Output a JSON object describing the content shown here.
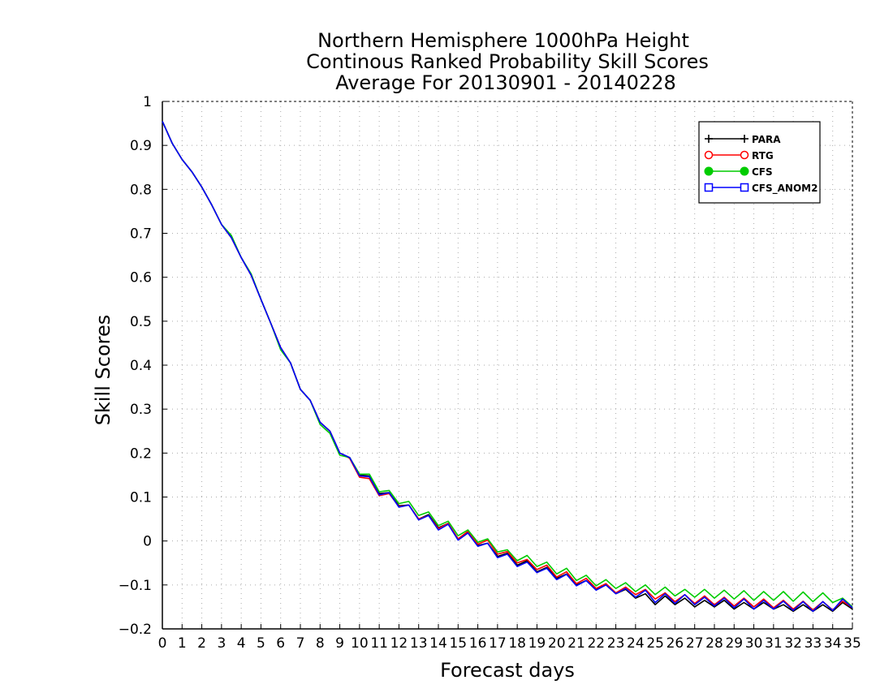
{
  "chart_data": {
    "type": "line",
    "title_lines": [
      "Northern Hemisphere 1000hPa Height",
      "Continous Ranked Probability Skill Scores",
      "Average For 20130901 - 20140228"
    ],
    "xlabel": "Forecast days",
    "ylabel": "Skill Scores",
    "xlim": [
      0,
      35
    ],
    "ylim": [
      -0.2,
      1
    ],
    "x_ticks": [
      0,
      1,
      2,
      3,
      4,
      5,
      6,
      7,
      8,
      9,
      10,
      11,
      12,
      13,
      14,
      15,
      16,
      17,
      18,
      19,
      20,
      21,
      22,
      23,
      24,
      25,
      26,
      27,
      28,
      29,
      30,
      31,
      32,
      33,
      34,
      35
    ],
    "x_tick_labels": [
      "0",
      "1",
      "2",
      "3",
      "4",
      "5",
      "6",
      "7",
      "8",
      "9",
      "10",
      "11",
      "12",
      "13",
      "14",
      "15",
      "16",
      "17",
      "18",
      "19",
      "20",
      "21",
      "22",
      "23",
      "24",
      "25",
      "26",
      "27",
      "28",
      "29",
      "30",
      "31",
      "32",
      "33",
      "34",
      "35"
    ],
    "y_ticks": [
      -0.2,
      -0.1,
      0,
      0.1,
      0.2,
      0.3,
      0.4,
      0.5,
      0.6,
      0.7,
      0.8,
      0.9,
      1
    ],
    "y_tick_labels": [
      "−0.2",
      "−0.1",
      "0",
      "0.1",
      "0.2",
      "0.3",
      "0.4",
      "0.5",
      "0.6",
      "0.7",
      "0.8",
      "0.9",
      "1"
    ],
    "grid": true,
    "legend_position": "top-right",
    "series": [
      {
        "name": "PARA",
        "color": "#000000",
        "marker": "plus",
        "x": [
          0,
          0.5,
          1,
          1.5,
          2,
          2.5,
          3,
          3.5,
          4,
          4.5,
          5,
          5.5,
          6,
          6.5,
          7,
          7.5,
          8,
          8.5,
          9,
          9.5,
          10,
          10.5,
          11,
          11.5,
          12,
          12.5,
          13,
          13.5,
          14,
          14.5,
          15,
          15.5,
          16,
          16.5,
          17,
          17.5,
          18,
          18.5,
          19,
          19.5,
          20,
          20.5,
          21,
          21.5,
          22,
          22.5,
          23,
          23.5,
          24,
          24.5,
          25,
          25.5,
          26,
          26.5,
          27,
          27.5,
          28,
          28.5,
          29,
          29.5,
          30,
          30.5,
          31,
          31.5,
          32,
          32.5,
          33,
          33.5,
          34,
          34.5,
          35
        ],
        "y": [
          0.955,
          0.905,
          0.868,
          0.84,
          0.805,
          0.765,
          0.72,
          0.69,
          0.645,
          0.605,
          0.55,
          0.495,
          0.44,
          0.405,
          0.345,
          0.32,
          0.27,
          0.25,
          0.2,
          0.19,
          0.15,
          0.148,
          0.108,
          0.11,
          0.08,
          0.082,
          0.05,
          0.06,
          0.03,
          0.04,
          0.005,
          0.02,
          -0.01,
          -0.005,
          -0.035,
          -0.028,
          -0.055,
          -0.045,
          -0.07,
          -0.06,
          -0.085,
          -0.075,
          -0.1,
          -0.09,
          -0.11,
          -0.1,
          -0.12,
          -0.11,
          -0.13,
          -0.12,
          -0.145,
          -0.125,
          -0.145,
          -0.13,
          -0.15,
          -0.135,
          -0.15,
          -0.135,
          -0.155,
          -0.14,
          -0.155,
          -0.14,
          -0.155,
          -0.145,
          -0.16,
          -0.145,
          -0.16,
          -0.145,
          -0.16,
          -0.14,
          -0.155
        ]
      },
      {
        "name": "RTG",
        "color": "#ff0000",
        "marker": "open-circle",
        "x": [
          0,
          0.5,
          1,
          1.5,
          2,
          2.5,
          3,
          3.5,
          4,
          4.5,
          5,
          5.5,
          6,
          6.5,
          7,
          7.5,
          8,
          8.5,
          9,
          9.5,
          10,
          10.5,
          11,
          11.5,
          12,
          12.5,
          13,
          13.5,
          14,
          14.5,
          15,
          15.5,
          16,
          16.5,
          17,
          17.5,
          18,
          18.5,
          19,
          19.5,
          20,
          20.5,
          21,
          21.5,
          22,
          22.5,
          23,
          23.5,
          24,
          24.5,
          25,
          25.5,
          26,
          26.5,
          27,
          27.5,
          28,
          28.5,
          29,
          29.5,
          30,
          30.5,
          31,
          31.5,
          32,
          32.5,
          33,
          33.5,
          34,
          34.5,
          35
        ],
        "y": [
          0.955,
          0.905,
          0.868,
          0.84,
          0.805,
          0.765,
          0.72,
          0.69,
          0.645,
          0.605,
          0.55,
          0.495,
          0.44,
          0.405,
          0.345,
          0.32,
          0.27,
          0.25,
          0.2,
          0.188,
          0.145,
          0.142,
          0.103,
          0.108,
          0.078,
          0.082,
          0.05,
          0.058,
          0.028,
          0.04,
          0.005,
          0.022,
          -0.007,
          0.002,
          -0.03,
          -0.024,
          -0.05,
          -0.042,
          -0.065,
          -0.055,
          -0.082,
          -0.07,
          -0.097,
          -0.085,
          -0.108,
          -0.097,
          -0.118,
          -0.105,
          -0.122,
          -0.11,
          -0.132,
          -0.118,
          -0.138,
          -0.122,
          -0.142,
          -0.125,
          -0.145,
          -0.128,
          -0.148,
          -0.13,
          -0.15,
          -0.132,
          -0.152,
          -0.135,
          -0.155,
          -0.137,
          -0.157,
          -0.138,
          -0.157,
          -0.137,
          -0.152
        ]
      },
      {
        "name": "CFS",
        "color": "#00cc00",
        "marker": "filled-circle",
        "x": [
          0,
          0.5,
          1,
          1.5,
          2,
          2.5,
          3,
          3.5,
          4,
          4.5,
          5,
          5.5,
          6,
          6.5,
          7,
          7.5,
          8,
          8.5,
          9,
          9.5,
          10,
          10.5,
          11,
          11.5,
          12,
          12.5,
          13,
          13.5,
          14,
          14.5,
          15,
          15.5,
          16,
          16.5,
          17,
          17.5,
          18,
          18.5,
          19,
          19.5,
          20,
          20.5,
          21,
          21.5,
          22,
          22.5,
          23,
          23.5,
          24,
          24.5,
          25,
          25.5,
          26,
          26.5,
          27,
          27.5,
          28,
          28.5,
          29,
          29.5,
          30,
          30.5,
          31,
          31.5,
          32,
          32.5,
          33,
          33.5,
          34,
          34.5,
          35
        ],
        "y": [
          0.955,
          0.905,
          0.868,
          0.84,
          0.805,
          0.765,
          0.72,
          0.695,
          0.645,
          0.608,
          0.55,
          0.495,
          0.435,
          0.405,
          0.345,
          0.32,
          0.265,
          0.245,
          0.195,
          0.19,
          0.152,
          0.152,
          0.112,
          0.115,
          0.085,
          0.09,
          0.058,
          0.066,
          0.035,
          0.045,
          0.012,
          0.025,
          -0.003,
          0.005,
          -0.025,
          -0.02,
          -0.045,
          -0.033,
          -0.058,
          -0.048,
          -0.075,
          -0.062,
          -0.09,
          -0.078,
          -0.102,
          -0.088,
          -0.108,
          -0.095,
          -0.115,
          -0.1,
          -0.122,
          -0.105,
          -0.125,
          -0.11,
          -0.128,
          -0.11,
          -0.13,
          -0.112,
          -0.132,
          -0.113,
          -0.135,
          -0.115,
          -0.135,
          -0.115,
          -0.137,
          -0.116,
          -0.138,
          -0.118,
          -0.14,
          -0.13,
          -0.15
        ]
      },
      {
        "name": "CFS_ANOM2",
        "color": "#0000ff",
        "marker": "open-square",
        "x": [
          0,
          0.5,
          1,
          1.5,
          2,
          2.5,
          3,
          3.5,
          4,
          4.5,
          5,
          5.5,
          6,
          6.5,
          7,
          7.5,
          8,
          8.5,
          9,
          9.5,
          10,
          10.5,
          11,
          11.5,
          12,
          12.5,
          13,
          13.5,
          14,
          14.5,
          15,
          15.5,
          16,
          16.5,
          17,
          17.5,
          18,
          18.5,
          19,
          19.5,
          20,
          20.5,
          21,
          21.5,
          22,
          22.5,
          23,
          23.5,
          24,
          24.5,
          25,
          25.5,
          26,
          26.5,
          27,
          27.5,
          28,
          28.5,
          29,
          29.5,
          30,
          30.5,
          31,
          31.5,
          32,
          32.5,
          33,
          33.5,
          34,
          34.5,
          35
        ],
        "y": [
          0.955,
          0.905,
          0.868,
          0.84,
          0.805,
          0.765,
          0.72,
          0.69,
          0.645,
          0.605,
          0.55,
          0.495,
          0.44,
          0.405,
          0.345,
          0.32,
          0.27,
          0.25,
          0.2,
          0.19,
          0.148,
          0.146,
          0.105,
          0.11,
          0.077,
          0.082,
          0.048,
          0.058,
          0.025,
          0.038,
          0.002,
          0.018,
          -0.012,
          -0.005,
          -0.038,
          -0.03,
          -0.058,
          -0.048,
          -0.072,
          -0.062,
          -0.088,
          -0.076,
          -0.102,
          -0.09,
          -0.112,
          -0.1,
          -0.12,
          -0.108,
          -0.128,
          -0.112,
          -0.14,
          -0.12,
          -0.142,
          -0.122,
          -0.145,
          -0.128,
          -0.148,
          -0.13,
          -0.152,
          -0.132,
          -0.155,
          -0.135,
          -0.155,
          -0.137,
          -0.158,
          -0.138,
          -0.16,
          -0.138,
          -0.158,
          -0.132,
          -0.152
        ]
      }
    ]
  }
}
